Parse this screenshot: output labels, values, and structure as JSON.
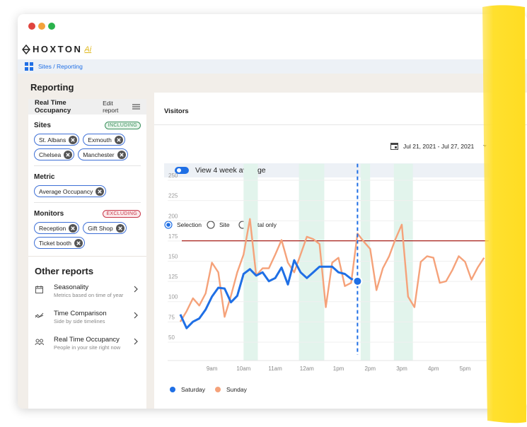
{
  "logo": {
    "text": "HOXTON",
    "suffix": "Ai"
  },
  "breadcrumb": "Sites / Reporting",
  "page_title": "Reporting",
  "sidebar": {
    "title": "Real Time Occupancy",
    "edit": "Edit report",
    "sections": [
      {
        "title": "Sites",
        "badge": "INCLUDING",
        "badge_color": "#3a8f5c",
        "badge_bg": "#e6f4ea",
        "chips": [
          "St. Albans",
          "Exmouth",
          "Chelsea",
          "Manchester"
        ]
      },
      {
        "title": "Metric",
        "chips": [
          "Average Occupancy"
        ]
      },
      {
        "title": "Monitors",
        "badge": "EXCLUDING",
        "badge_color": "#c8384a",
        "badge_bg": "#fbe9eb",
        "chips": [
          "Reception",
          "Gift Shop",
          "Ticket booth"
        ]
      }
    ],
    "other_title": "Other reports",
    "other": [
      {
        "title": "Seasonality",
        "subtitle": "Metrics based on time of year"
      },
      {
        "title": "Time Comparison",
        "subtitle": "Side by side timelines"
      },
      {
        "title": "Real Time Occupancy",
        "subtitle": "People in your site right now"
      }
    ]
  },
  "panel": {
    "title": "Visitors",
    "radios": [
      "Selection",
      "Site",
      "Total only"
    ],
    "selected": 0,
    "date_range": "Jul 21, 2021 - Jul 27, 2021",
    "toggle": "View 4 week average"
  },
  "chart_data": {
    "type": "line",
    "x": [
      8,
      8.2,
      8.4,
      8.6,
      8.8,
      9,
      9.2,
      9.4,
      9.6,
      9.8,
      10,
      10.2,
      10.4,
      10.6,
      10.8,
      11,
      11.2,
      11.4,
      11.6,
      11.8,
      12,
      12.2,
      12.4,
      12.6,
      12.8,
      13,
      13.2,
      13.4,
      13.6,
      13.8,
      14,
      14.2,
      14.4,
      14.6,
      14.8,
      15,
      15.2,
      15.4,
      15.6,
      15.8,
      16,
      16.2,
      16.4,
      16.6,
      16.8,
      17,
      17.2,
      17.4,
      17.6
    ],
    "xlim": [
      7.6,
      17.75
    ],
    "xticks": [
      {
        "value": 9,
        "label": "9am"
      },
      {
        "value": 10,
        "label": "10am"
      },
      {
        "value": 11,
        "label": "11am"
      },
      {
        "value": 12,
        "label": "12am"
      },
      {
        "value": 13,
        "label": "1pm"
      },
      {
        "value": 14,
        "label": "2pm"
      },
      {
        "value": 15,
        "label": "3pm"
      },
      {
        "value": 16,
        "label": "4pm"
      },
      {
        "value": 17,
        "label": "5pm"
      }
    ],
    "ylim": [
      22,
      260
    ],
    "yticks": [
      50,
      75,
      100,
      125,
      150,
      175,
      200,
      225,
      250
    ],
    "grid": true,
    "series": [
      {
        "name": "Saturday",
        "color": "#1f6fe5",
        "values": [
          79,
          62,
          70,
          74,
          85,
          101,
          112,
          111,
          94,
          102,
          129,
          135,
          127,
          131,
          120,
          124,
          137,
          116,
          146,
          131,
          124,
          131,
          138,
          138,
          138,
          131,
          129,
          123,
          120,
          null,
          null,
          null,
          null,
          null,
          null,
          null,
          null,
          null,
          null,
          null,
          null,
          null,
          null,
          null,
          null,
          null,
          null,
          null,
          null
        ]
      },
      {
        "name": "Sunday",
        "color": "#f5a27a",
        "values": [
          70,
          83,
          99,
          90,
          105,
          143,
          131,
          76,
          102,
          131,
          153,
          197,
          127,
          136,
          136,
          153,
          171,
          143,
          131,
          153,
          175,
          172,
          166,
          88,
          143,
          149,
          114,
          118,
          179,
          169,
          160,
          109,
          136,
          151,
          172,
          190,
          101,
          88,
          144,
          151,
          149,
          118,
          120,
          134,
          151,
          144,
          122,
          137,
          149
        ]
      }
    ],
    "threshold": 170,
    "threshold_color": "#a8201a",
    "highlight_ranges": [
      [
        10,
        10.45
      ],
      [
        11.75,
        12.55
      ],
      [
        13.7,
        14
      ],
      [
        14.75,
        15.35
      ]
    ],
    "highlight_color": "#e2f4ec",
    "cursor_x": 13.6
  }
}
